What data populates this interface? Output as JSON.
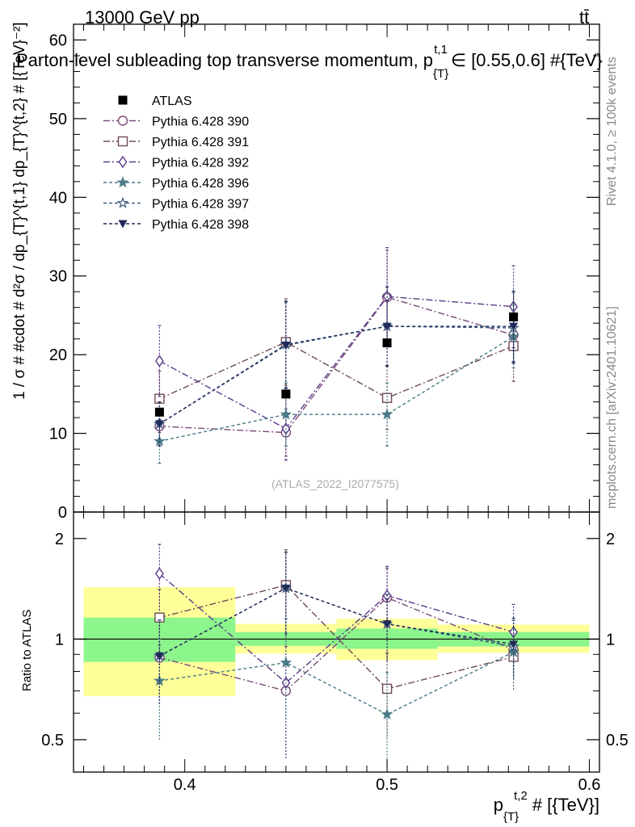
{
  "header": {
    "energy_label": "13000 GeV pp",
    "process_label": "tt̄"
  },
  "side_labels": {
    "rivet": "Rivet 4.1.0, ≥ 100k events",
    "mcplots": "mcplots.cern.ch [arXiv:2401.10621]"
  },
  "watermark": "(ATLAS_2022_I2077575)",
  "colors": {
    "ATLAS": "#000000",
    "Pythia 6.428 390": "#7a4a78",
    "Pythia 6.428 391": "#6e4a58",
    "Pythia 6.428 392": "#5a3a88",
    "Pythia 6.428 396": "#4a7a88",
    "Pythia 6.428 397": "#3a5a80",
    "Pythia 6.428 398": "#202a58",
    "band_inner": "#8cf58c",
    "band_outer": "#ffff99"
  },
  "chart_data": [
    {
      "type": "scatter",
      "title": "Parton-level subleading top transverse momentum, p_{T}^{t,1} ∈ [0.55,0.6] #{TeV}",
      "title_main": "Parton-level subleading top transverse momentum, p",
      "title_sup": "t,1",
      "title_sub": "{T}",
      "title_tail": "∈ [0.55,0.6] #{TeV}",
      "ylabel": "1 / σ # #cdot # d²σ / dp_{T}^{t,1} dp_{T}^{t,2} # [{TeV}⁻²]",
      "ylim": [
        0,
        62
      ],
      "xlim": [
        0.345,
        0.605
      ],
      "yticks": [
        0,
        10,
        20,
        30,
        40,
        50,
        60
      ],
      "ytick_labels": [
        "0",
        "10",
        "20",
        "30",
        "40",
        "50",
        "60"
      ],
      "legend": [
        "ATLAS",
        "Pythia 6.428 390",
        "Pythia 6.428 391",
        "Pythia 6.428 392",
        "Pythia 6.428 396",
        "Pythia 6.428 397",
        "Pythia 6.428 398"
      ],
      "legend_position": "top-left",
      "x": [
        0.3875,
        0.45,
        0.5,
        0.5625
      ],
      "data": {
        "name": "ATLAS",
        "marker": "square",
        "values": [
          12.7,
          15.0,
          21.5,
          24.8
        ]
      },
      "series": [
        {
          "name": "Pythia 6.428 390",
          "marker": "circle-open",
          "dash": "8,3,2,3",
          "values": [
            10.9,
            10.1,
            27.3,
            22.5
          ],
          "err": [
            0.8,
            3.0,
            6.0,
            3.5
          ]
        },
        {
          "name": "Pythia 6.428 391",
          "marker": "square-open",
          "dash": "8,3,2,3",
          "values": [
            14.4,
            21.6,
            14.5,
            21.1
          ],
          "err": [
            3.5,
            5.5,
            4.0,
            4.5
          ]
        },
        {
          "name": "Pythia 6.428 392",
          "marker": "diamond-open",
          "dash": "8,3,2,3",
          "values": [
            19.2,
            10.6,
            27.4,
            26.1
          ],
          "err": [
            4.5,
            4.0,
            6.2,
            5.2
          ]
        },
        {
          "name": "Pythia 6.428 396",
          "marker": "star-filled",
          "dash": "4,3",
          "values": [
            9.0,
            12.4,
            12.4,
            22.3
          ],
          "err": [
            2.8,
            4.0,
            4.0,
            4.0
          ]
        },
        {
          "name": "Pythia 6.428 397",
          "marker": "star-open",
          "dash": "4,3",
          "values": [
            11.2,
            21.3,
            23.6,
            23.4
          ],
          "err": [
            2.8,
            5.5,
            5.0,
            4.5
          ]
        },
        {
          "name": "Pythia 6.428 398",
          "marker": "triangle-down",
          "dash": "4,3",
          "values": [
            11.2,
            21.2,
            23.6,
            23.6
          ],
          "err": [
            2.8,
            5.5,
            5.0,
            4.5
          ]
        }
      ]
    },
    {
      "type": "scatter",
      "title": "Ratio to ATLAS",
      "ylabel": "Ratio to ATLAS",
      "xlabel": "p_{T}^{t,2} # [{TeV}]",
      "xlabel_main": "p",
      "xlabel_sub": "{T}",
      "xlabel_sup": "t,2",
      "xlabel_tail": "# [{TeV}]",
      "ylim": [
        0.4,
        2.4
      ],
      "yscale": "log",
      "yticks": [
        0.5,
        1,
        2
      ],
      "ytick_labels": [
        "0.5",
        "1",
        "2"
      ],
      "xticks": [
        0.4,
        0.5,
        0.6
      ],
      "xtick_labels": [
        "0.4",
        "0.5",
        "0.6"
      ],
      "bins": [
        {
          "lo": 0.35,
          "hi": 0.425,
          "inner": [
            0.855,
            1.16
          ],
          "outer": [
            0.675,
            1.43
          ]
        },
        {
          "lo": 0.425,
          "hi": 0.475,
          "inner": [
            0.955,
            1.05
          ],
          "outer": [
            0.905,
            1.11
          ]
        },
        {
          "lo": 0.475,
          "hi": 0.525,
          "inner": [
            0.935,
            1.075
          ],
          "outer": [
            0.865,
            1.15
          ]
        },
        {
          "lo": 0.525,
          "hi": 0.6,
          "inner": [
            0.95,
            1.05
          ],
          "outer": [
            0.91,
            1.105
          ]
        }
      ],
      "series": [
        {
          "name": "Pythia 6.428 390",
          "values": [
            0.88,
            0.7,
            1.33,
            0.93
          ],
          "err": [
            0.08,
            0.25,
            0.3,
            0.14
          ]
        },
        {
          "name": "Pythia 6.428 391",
          "values": [
            1.16,
            1.45,
            0.71,
            0.885
          ],
          "err": [
            0.25,
            0.4,
            0.2,
            0.18
          ]
        },
        {
          "name": "Pythia 6.428 392",
          "values": [
            1.57,
            0.74,
            1.35,
            1.05
          ],
          "err": [
            0.35,
            0.3,
            0.3,
            0.22
          ]
        },
        {
          "name": "Pythia 6.428 396",
          "values": [
            0.75,
            0.85,
            0.595,
            0.915
          ],
          "err": [
            0.25,
            0.3,
            0.2,
            0.16
          ]
        },
        {
          "name": "Pythia 6.428 397",
          "values": [
            0.89,
            1.42,
            1.11,
            0.95
          ],
          "err": [
            0.25,
            0.4,
            0.25,
            0.19
          ]
        },
        {
          "name": "Pythia 6.428 398",
          "values": [
            0.89,
            1.42,
            1.11,
            0.965
          ],
          "err": [
            0.25,
            0.4,
            0.25,
            0.19
          ]
        }
      ]
    }
  ]
}
